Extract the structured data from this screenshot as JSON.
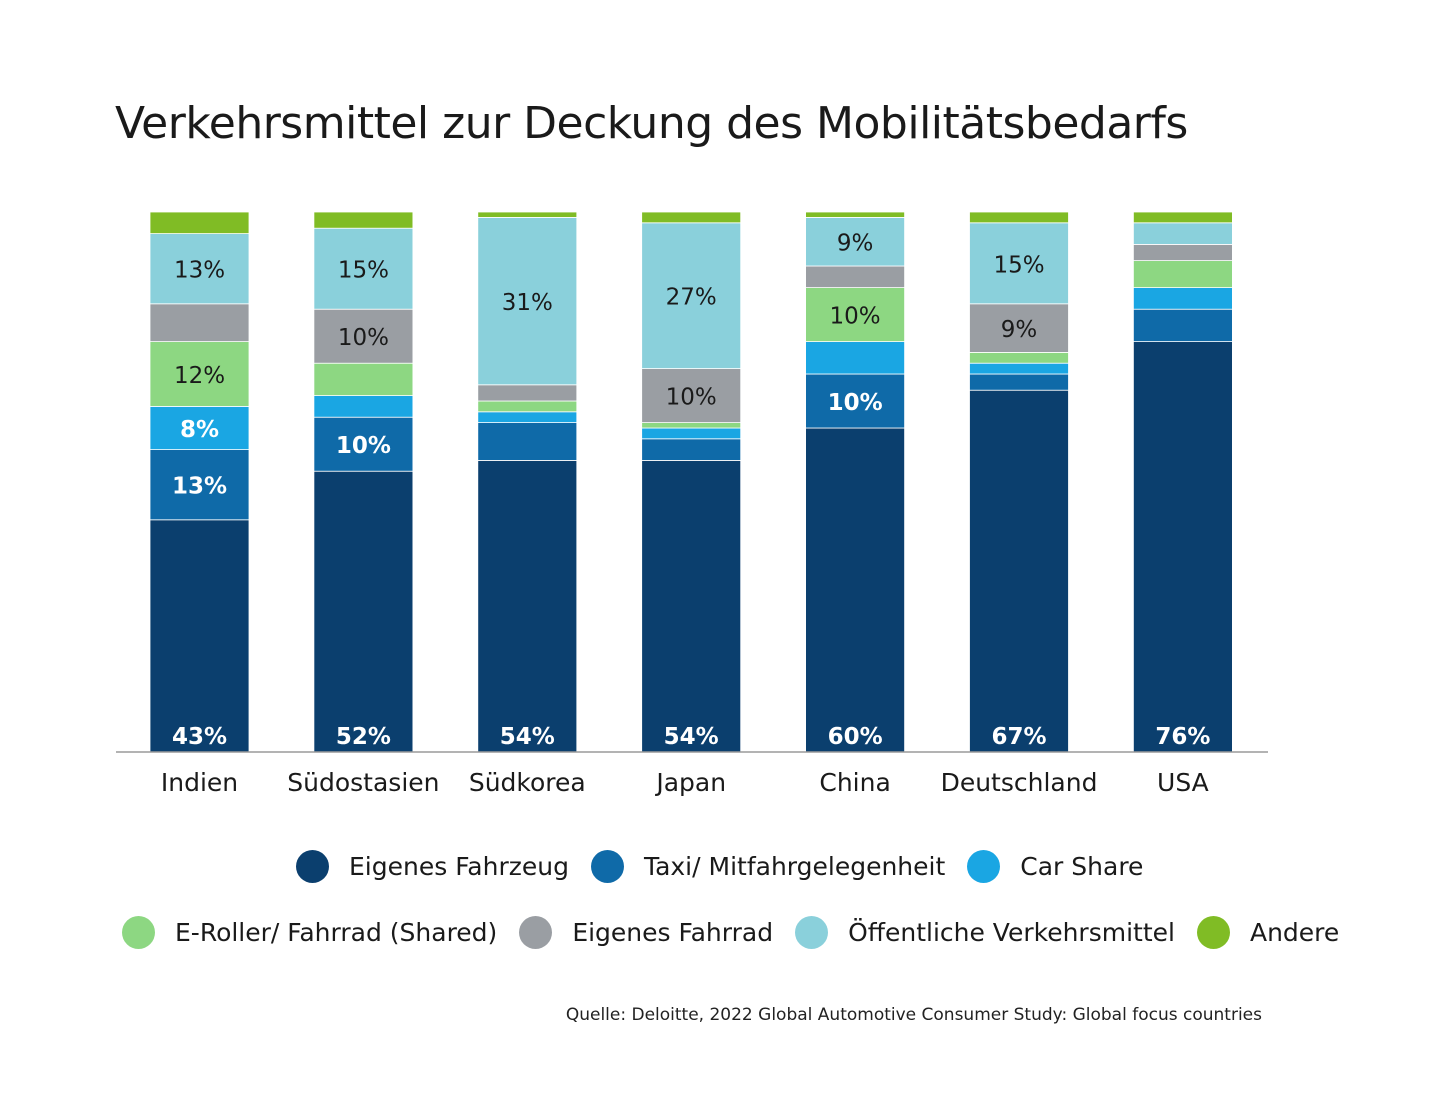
{
  "colors": {
    "eigenes_fahrzeug": "#0b3f6e",
    "taxi": "#0f6aa8",
    "car_share": "#1aa6e3",
    "e_roller": "#8dd782",
    "eigenes_fahrrad": "#9a9ea3",
    "oeffentliche": "#8ad0db",
    "andere": "#80bc25"
  },
  "chart_data": {
    "type": "bar",
    "stacked": true,
    "title": "Verkehrsmittel zur Deckung des Mobilitätsbedarfs",
    "categories": [
      "Indien",
      "Südostasien",
      "Südkorea",
      "Japan",
      "China",
      "Deutschland",
      "USA"
    ],
    "ylim": [
      0,
      100
    ],
    "grid": false,
    "legend_position": "bottom",
    "series": [
      {
        "key": "eigenes_fahrzeug",
        "name": "Eigenes Fahrzeug",
        "values": [
          43,
          52,
          54,
          54,
          60,
          67,
          76
        ],
        "labels": [
          "43%",
          "52%",
          "54%",
          "54%",
          "60%",
          "67%",
          "76%"
        ]
      },
      {
        "key": "taxi",
        "name": "Taxi/ Mitfahrgelegenheit",
        "values": [
          13,
          10,
          7,
          4,
          10,
          3,
          6
        ],
        "labels": [
          "13%",
          "10%",
          "",
          "",
          "10%",
          "",
          ""
        ]
      },
      {
        "key": "car_share",
        "name": "Car Share",
        "values": [
          8,
          4,
          2,
          2,
          6,
          2,
          4
        ],
        "labels": [
          "8%",
          "",
          "",
          "",
          "",
          "",
          ""
        ]
      },
      {
        "key": "e_roller",
        "name": "E-Roller/ Fahrrad (Shared)",
        "values": [
          12,
          6,
          2,
          1,
          10,
          2,
          5
        ],
        "labels": [
          "12%",
          "",
          "",
          "",
          "10%",
          "",
          ""
        ]
      },
      {
        "key": "eigenes_fahrrad",
        "name": "Eigenes Fahrrad",
        "values": [
          7,
          10,
          3,
          10,
          4,
          9,
          3
        ],
        "labels": [
          "",
          "10%",
          "",
          "10%",
          "",
          "9%",
          ""
        ]
      },
      {
        "key": "oeffentliche",
        "name": "Öffentliche Verkehrsmittel",
        "values": [
          13,
          15,
          31,
          27,
          9,
          15,
          4
        ],
        "labels": [
          "13%",
          "15%",
          "31%",
          "27%",
          "9%",
          "15%",
          ""
        ]
      },
      {
        "key": "andere",
        "name": "Andere",
        "values": [
          4,
          3,
          1,
          2,
          1,
          2,
          2
        ],
        "labels": [
          "",
          "",
          "",
          "",
          "",
          "",
          ""
        ]
      }
    ]
  },
  "legend": {
    "row1": [
      "Eigenes Fahrzeug",
      "Taxi/ Mitfahrgelegenheit",
      "Car Share"
    ],
    "row2": [
      "E-Roller/ Fahrrad (Shared)",
      "Eigenes Fahrrad",
      "Öffentliche Verkehrsmittel",
      "Andere"
    ]
  },
  "source": "Quelle: Deloitte, 2022 Global Automotive Consumer Study: Global focus countries"
}
